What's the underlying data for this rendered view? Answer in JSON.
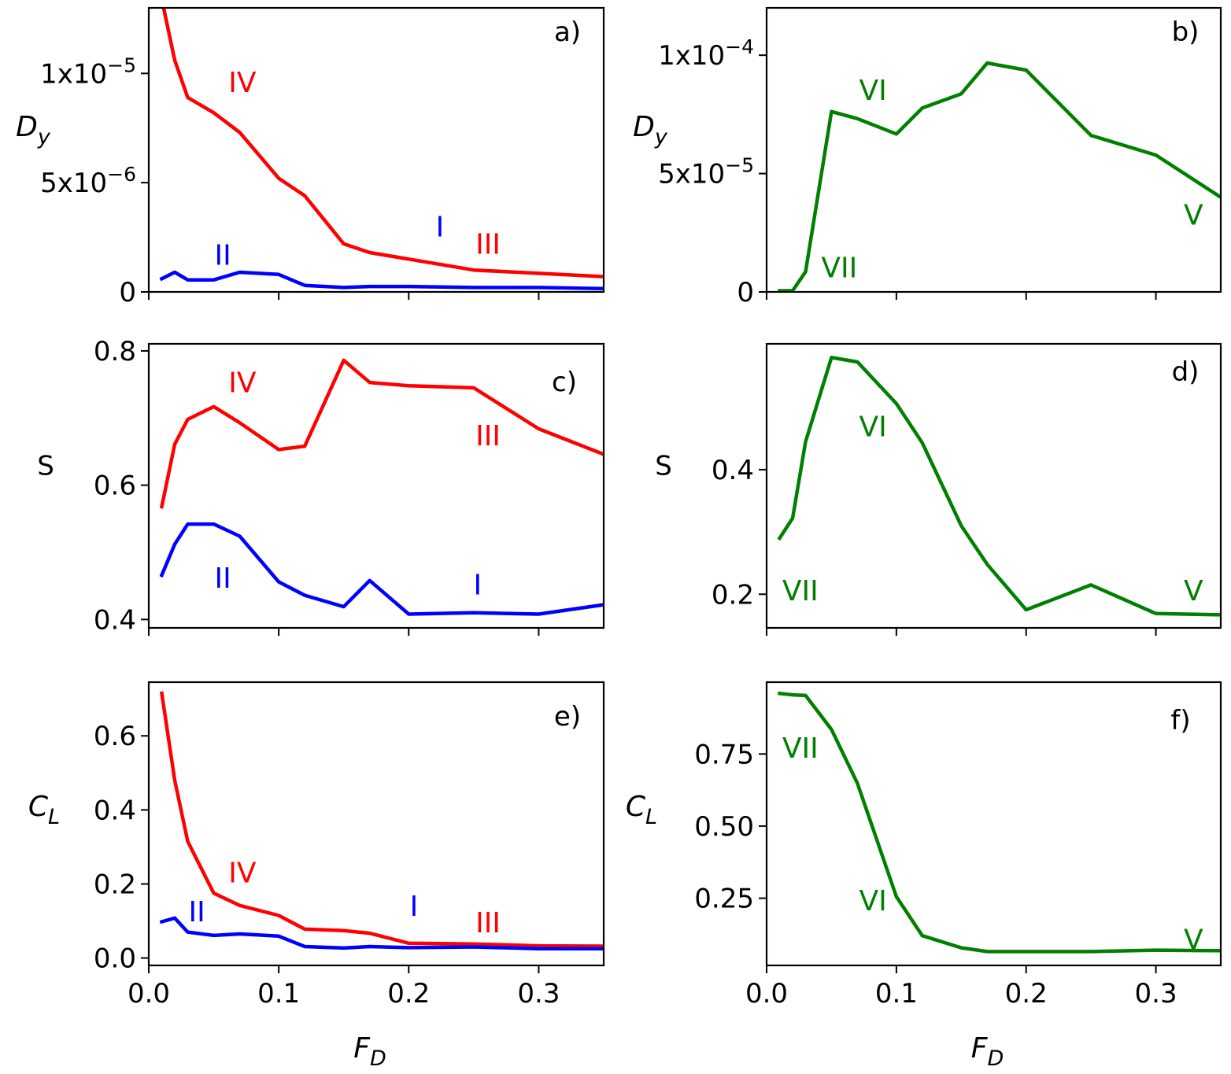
{
  "figure": {
    "panels": [
      "a)",
      "b)",
      "c)",
      "d)",
      "e)",
      "f)"
    ]
  },
  "chart_data": [
    {
      "panel": "a)",
      "type": "line",
      "ylabel": "D_y",
      "xlim": [
        0,
        0.35
      ],
      "ylim": [
        0,
        1.3e-05
      ],
      "xticks": [
        0.0,
        0.1,
        0.2,
        0.3
      ],
      "xtick_labels": [
        "",
        "",
        "",
        ""
      ],
      "yticks": [
        0,
        5e-06,
        1e-05
      ],
      "ytick_labels": [
        {
          "base": "0",
          "exp": ""
        },
        {
          "base": "5x10",
          "exp": "−6"
        },
        {
          "base": "1x10",
          "exp": "−5"
        }
      ],
      "series": [
        {
          "name": "red",
          "color": "#ff0000",
          "x": [
            0.01,
            0.02,
            0.03,
            0.05,
            0.07,
            0.1,
            0.12,
            0.15,
            0.17,
            0.2,
            0.25,
            0.3,
            0.35
          ],
          "y": [
            1.34e-05,
            1.06e-05,
            8.9e-06,
            8.2e-06,
            7.3e-06,
            5.2e-06,
            4.4e-06,
            2.2e-06,
            1.8e-06,
            1.5e-06,
            1e-06,
            8.5e-07,
            7e-07
          ]
        },
        {
          "name": "blue",
          "color": "#0000ff",
          "x": [
            0.01,
            0.02,
            0.03,
            0.05,
            0.07,
            0.1,
            0.12,
            0.15,
            0.17,
            0.2,
            0.25,
            0.3,
            0.35
          ],
          "y": [
            6e-07,
            9e-07,
            5.5e-07,
            5.5e-07,
            9e-07,
            8e-07,
            3e-07,
            2e-07,
            2.5e-07,
            2.5e-07,
            2e-07,
            2e-07,
            1.5e-07
          ]
        }
      ],
      "annotations": [
        {
          "text": "IV",
          "x": 0.072,
          "y": 9.5e-06,
          "color": "#ff0000"
        },
        {
          "text": "II",
          "x": 0.057,
          "y": 1.6e-06,
          "color": "#0000ff"
        },
        {
          "text": "I",
          "x": 0.224,
          "y": 2.9e-06,
          "color": "#0000ff"
        },
        {
          "text": "III",
          "x": 0.261,
          "y": 2.1e-06,
          "color": "#ff0000"
        }
      ]
    },
    {
      "panel": "b)",
      "type": "line",
      "ylabel": "D_y",
      "xlim": [
        0,
        0.35
      ],
      "ylim": [
        0,
        0.00012
      ],
      "xticks": [
        0.0,
        0.1,
        0.2,
        0.3
      ],
      "xtick_labels": [
        "",
        "",
        "",
        ""
      ],
      "yticks": [
        0,
        5e-05,
        0.0001
      ],
      "ytick_labels": [
        {
          "base": "0",
          "exp": ""
        },
        {
          "base": "5x10",
          "exp": "−5"
        },
        {
          "base": "1x10",
          "exp": "−4"
        }
      ],
      "series": [
        {
          "name": "green",
          "color": "#008000",
          "x": [
            0.01,
            0.02,
            0.03,
            0.05,
            0.07,
            0.1,
            0.12,
            0.15,
            0.17,
            0.2,
            0.25,
            0.3,
            0.35
          ],
          "y": [
            5e-07,
            5e-07,
            8.5e-06,
            7.62e-05,
            7.32e-05,
            6.67e-05,
            7.77e-05,
            8.37e-05,
            9.67e-05,
            9.37e-05,
            6.61e-05,
            5.78e-05,
            4e-05
          ]
        }
      ],
      "annotations": [
        {
          "text": "VI",
          "x": 0.082,
          "y": 8.45e-05,
          "color": "#008000"
        },
        {
          "text": "VII",
          "x": 0.056,
          "y": 9.5e-06,
          "color": "#008000"
        },
        {
          "text": "V",
          "x": 0.329,
          "y": 3.18e-05,
          "color": "#008000"
        }
      ]
    },
    {
      "panel": "c)",
      "type": "line",
      "ylabel": "S",
      "xlim": [
        0,
        0.35
      ],
      "ylim": [
        0.3875,
        0.8105
      ],
      "xticks": [
        0.0,
        0.1,
        0.2,
        0.3
      ],
      "xtick_labels": [
        "",
        "",
        "",
        ""
      ],
      "yticks": [
        0.4,
        0.6,
        0.8
      ],
      "ytick_labels": [
        {
          "base": "0.4",
          "exp": ""
        },
        {
          "base": "0.6",
          "exp": ""
        },
        {
          "base": "0.8",
          "exp": ""
        }
      ],
      "series": [
        {
          "name": "red",
          "color": "#ff0000",
          "x": [
            0.01,
            0.02,
            0.03,
            0.05,
            0.07,
            0.1,
            0.12,
            0.15,
            0.17,
            0.2,
            0.25,
            0.3,
            0.35
          ],
          "y": [
            0.568,
            0.661,
            0.698,
            0.717,
            0.693,
            0.653,
            0.658,
            0.786,
            0.753,
            0.748,
            0.745,
            0.684,
            0.646
          ]
        },
        {
          "name": "blue",
          "color": "#0000ff",
          "x": [
            0.01,
            0.02,
            0.03,
            0.05,
            0.07,
            0.1,
            0.12,
            0.15,
            0.17,
            0.2,
            0.25,
            0.3,
            0.35
          ],
          "y": [
            0.466,
            0.512,
            0.542,
            0.542,
            0.524,
            0.456,
            0.436,
            0.419,
            0.458,
            0.408,
            0.41,
            0.408,
            0.422
          ]
        }
      ],
      "annotations": [
        {
          "text": "IV",
          "x": 0.072,
          "y": 0.75,
          "color": "#ff0000"
        },
        {
          "text": "III",
          "x": 0.261,
          "y": 0.671,
          "color": "#ff0000"
        },
        {
          "text": "II",
          "x": 0.057,
          "y": 0.459,
          "color": "#0000ff"
        },
        {
          "text": "I",
          "x": 0.253,
          "y": 0.449,
          "color": "#0000ff"
        }
      ]
    },
    {
      "panel": "d)",
      "type": "line",
      "ylabel": "S",
      "xlim": [
        0,
        0.35
      ],
      "ylim": [
        0.146,
        0.602
      ],
      "xticks": [
        0.0,
        0.1,
        0.2,
        0.3
      ],
      "xtick_labels": [
        "",
        "",
        "",
        ""
      ],
      "yticks": [
        0.2,
        0.4
      ],
      "ytick_labels": [
        {
          "base": "0.2",
          "exp": ""
        },
        {
          "base": "0.4",
          "exp": ""
        }
      ],
      "series": [
        {
          "name": "green",
          "color": "#008000",
          "x": [
            0.01,
            0.02,
            0.03,
            0.05,
            0.07,
            0.1,
            0.12,
            0.15,
            0.17,
            0.2,
            0.25,
            0.3,
            0.35
          ],
          "y": [
            0.29,
            0.322,
            0.445,
            0.58,
            0.573,
            0.506,
            0.443,
            0.31,
            0.248,
            0.175,
            0.215,
            0.169,
            0.167
          ]
        }
      ],
      "annotations": [
        {
          "text": "VI",
          "x": 0.082,
          "y": 0.466,
          "color": "#008000"
        },
        {
          "text": "VII",
          "x": 0.026,
          "y": 0.203,
          "color": "#008000"
        },
        {
          "text": "V",
          "x": 0.329,
          "y": 0.203,
          "color": "#008000"
        }
      ]
    },
    {
      "panel": "e)",
      "type": "line",
      "ylabel": "C_L",
      "xlabel": "F_D",
      "xlim": [
        0,
        0.35
      ],
      "ylim": [
        -0.02,
        0.745
      ],
      "xticks": [
        0.0,
        0.1,
        0.2,
        0.3
      ],
      "xtick_labels": [
        "0.0",
        "0.1",
        "0.2",
        "0.3"
      ],
      "yticks": [
        0.0,
        0.2,
        0.4,
        0.6
      ],
      "ytick_labels": [
        {
          "base": "0.0",
          "exp": ""
        },
        {
          "base": "0.2",
          "exp": ""
        },
        {
          "base": "0.4",
          "exp": ""
        },
        {
          "base": "0.6",
          "exp": ""
        }
      ],
      "series": [
        {
          "name": "red",
          "color": "#ff0000",
          "x": [
            0.01,
            0.02,
            0.03,
            0.05,
            0.07,
            0.1,
            0.12,
            0.15,
            0.17,
            0.2,
            0.25,
            0.3,
            0.35
          ],
          "y": [
            0.715,
            0.48,
            0.315,
            0.175,
            0.142,
            0.115,
            0.078,
            0.074,
            0.067,
            0.04,
            0.038,
            0.033,
            0.032
          ]
        },
        {
          "name": "blue",
          "color": "#0000ff",
          "x": [
            0.01,
            0.02,
            0.03,
            0.05,
            0.07,
            0.1,
            0.12,
            0.15,
            0.17,
            0.2,
            0.25,
            0.3,
            0.35
          ],
          "y": [
            0.098,
            0.108,
            0.07,
            0.061,
            0.065,
            0.059,
            0.031,
            0.027,
            0.031,
            0.028,
            0.03,
            0.025,
            0.025
          ]
        }
      ],
      "annotations": [
        {
          "text": "IV",
          "x": 0.072,
          "y": 0.225,
          "color": "#ff0000"
        },
        {
          "text": "II",
          "x": 0.037,
          "y": 0.12,
          "color": "#0000ff"
        },
        {
          "text": "I",
          "x": 0.204,
          "y": 0.135,
          "color": "#0000ff"
        },
        {
          "text": "III",
          "x": 0.261,
          "y": 0.09,
          "color": "#ff0000"
        }
      ]
    },
    {
      "panel": "f)",
      "type": "line",
      "ylabel": "C_L",
      "xlabel": "F_D",
      "xlim": [
        0,
        0.35
      ],
      "ylim": [
        0.017,
        0.999
      ],
      "xticks": [
        0.0,
        0.1,
        0.2,
        0.3
      ],
      "xtick_labels": [
        "0.0",
        "0.1",
        "0.2",
        "0.3"
      ],
      "yticks": [
        0.25,
        0.5,
        0.75
      ],
      "ytick_labels": [
        {
          "base": "0.25",
          "exp": ""
        },
        {
          "base": "0.50",
          "exp": ""
        },
        {
          "base": "0.75",
          "exp": ""
        }
      ],
      "series": [
        {
          "name": "green",
          "color": "#008000",
          "x": [
            0.01,
            0.02,
            0.03,
            0.05,
            0.07,
            0.1,
            0.12,
            0.15,
            0.17,
            0.2,
            0.25,
            0.3,
            0.35
          ],
          "y": [
            0.96,
            0.955,
            0.953,
            0.835,
            0.648,
            0.255,
            0.12,
            0.078,
            0.065,
            0.065,
            0.065,
            0.07,
            0.068
          ]
        }
      ],
      "annotations": [
        {
          "text": "VII",
          "x": 0.026,
          "y": 0.765,
          "color": "#008000"
        },
        {
          "text": "VI",
          "x": 0.082,
          "y": 0.235,
          "color": "#008000"
        },
        {
          "text": "V",
          "x": 0.329,
          "y": 0.1,
          "color": "#008000"
        }
      ]
    }
  ]
}
